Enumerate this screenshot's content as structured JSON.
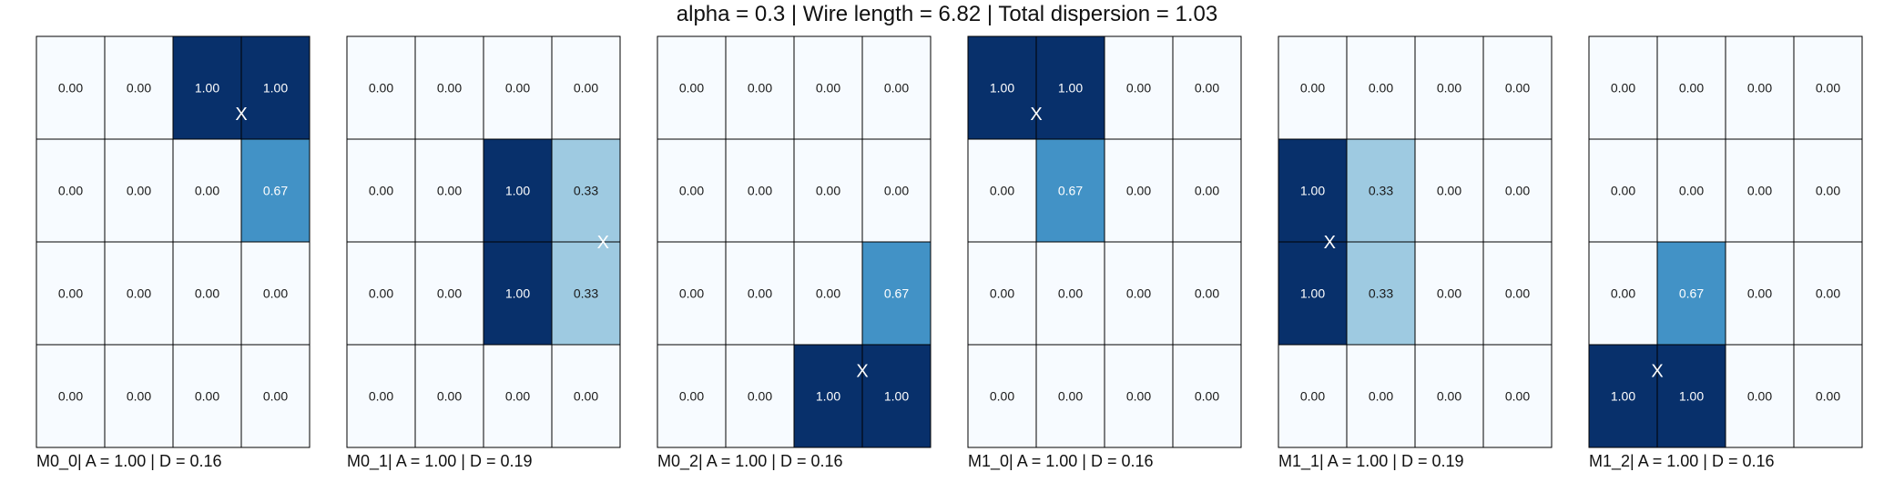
{
  "title": "alpha = 0.3 | Wire length = 6.82 | Total dispersion = 1.03",
  "colors": {
    "scale": [
      "#f7fbff",
      "#deebf7",
      "#c6dbef",
      "#9ecae1",
      "#6baed6",
      "#4292c6",
      "#2171b5",
      "#08519c",
      "#08306b"
    ],
    "grid": "#000000",
    "dark_text": "#1a1a1a",
    "light_text": "#ffffff"
  },
  "chart_data": [
    {
      "type": "heatmap",
      "caption": "M0_0| A = 1.00 | D = 0.16",
      "values": [
        [
          0.0,
          0.0,
          1.0,
          1.0
        ],
        [
          0.0,
          0.0,
          0.0,
          0.67
        ],
        [
          0.0,
          0.0,
          0.0,
          0.0
        ],
        [
          0.0,
          0.0,
          0.0,
          0.0
        ]
      ],
      "labels": [
        [
          "0.00",
          "0.00",
          "1.00",
          "1.00"
        ],
        [
          "0.00",
          "0.00",
          "0.00",
          "0.67"
        ],
        [
          "0.00",
          "0.00",
          "0.00",
          "0.00"
        ],
        [
          "0.00",
          "0.00",
          "0.00",
          "0.00"
        ]
      ],
      "marker": {
        "label": "X",
        "col": 3.0,
        "row": 0.75
      }
    },
    {
      "type": "heatmap",
      "caption": "M0_1| A = 1.00 | D = 0.19",
      "values": [
        [
          0.0,
          0.0,
          0.0,
          0.0
        ],
        [
          0.0,
          0.0,
          1.0,
          0.33
        ],
        [
          0.0,
          0.0,
          1.0,
          0.33
        ],
        [
          0.0,
          0.0,
          0.0,
          0.0
        ]
      ],
      "labels": [
        [
          "0.00",
          "0.00",
          "0.00",
          "0.00"
        ],
        [
          "0.00",
          "0.00",
          "1.00",
          "0.33"
        ],
        [
          "0.00",
          "0.00",
          "1.00",
          "0.33"
        ],
        [
          "0.00",
          "0.00",
          "0.00",
          "0.00"
        ]
      ],
      "marker": {
        "label": "X",
        "col": 3.75,
        "row": 2.0
      }
    },
    {
      "type": "heatmap",
      "caption": "M0_2| A = 1.00 | D = 0.16",
      "values": [
        [
          0.0,
          0.0,
          0.0,
          0.0
        ],
        [
          0.0,
          0.0,
          0.0,
          0.0
        ],
        [
          0.0,
          0.0,
          0.0,
          0.67
        ],
        [
          0.0,
          0.0,
          1.0,
          1.0
        ]
      ],
      "labels": [
        [
          "0.00",
          "0.00",
          "0.00",
          "0.00"
        ],
        [
          "0.00",
          "0.00",
          "0.00",
          "0.00"
        ],
        [
          "0.00",
          "0.00",
          "0.00",
          "0.67"
        ],
        [
          "0.00",
          "0.00",
          "1.00",
          "1.00"
        ]
      ],
      "marker": {
        "label": "X",
        "col": 3.0,
        "row": 3.25
      }
    },
    {
      "type": "heatmap",
      "caption": "M1_0| A = 1.00 | D = 0.16",
      "values": [
        [
          1.0,
          1.0,
          0.0,
          0.0
        ],
        [
          0.0,
          0.67,
          0.0,
          0.0
        ],
        [
          0.0,
          0.0,
          0.0,
          0.0
        ],
        [
          0.0,
          0.0,
          0.0,
          0.0
        ]
      ],
      "labels": [
        [
          "1.00",
          "1.00",
          "0.00",
          "0.00"
        ],
        [
          "0.00",
          "0.67",
          "0.00",
          "0.00"
        ],
        [
          "0.00",
          "0.00",
          "0.00",
          "0.00"
        ],
        [
          "0.00",
          "0.00",
          "0.00",
          "0.00"
        ]
      ],
      "marker": {
        "label": "X",
        "col": 1.0,
        "row": 0.75
      }
    },
    {
      "type": "heatmap",
      "caption": "M1_1| A = 1.00 | D = 0.19",
      "values": [
        [
          0.0,
          0.0,
          0.0,
          0.0
        ],
        [
          1.0,
          0.33,
          0.0,
          0.0
        ],
        [
          1.0,
          0.33,
          0.0,
          0.0
        ],
        [
          0.0,
          0.0,
          0.0,
          0.0
        ]
      ],
      "labels": [
        [
          "0.00",
          "0.00",
          "0.00",
          "0.00"
        ],
        [
          "1.00",
          "0.33",
          "0.00",
          "0.00"
        ],
        [
          "1.00",
          "0.33",
          "0.00",
          "0.00"
        ],
        [
          "0.00",
          "0.00",
          "0.00",
          "0.00"
        ]
      ],
      "marker": {
        "label": "X",
        "col": 0.75,
        "row": 2.0
      }
    },
    {
      "type": "heatmap",
      "caption": "M1_2| A = 1.00 | D = 0.16",
      "values": [
        [
          0.0,
          0.0,
          0.0,
          0.0
        ],
        [
          0.0,
          0.0,
          0.0,
          0.0
        ],
        [
          0.0,
          0.67,
          0.0,
          0.0
        ],
        [
          1.0,
          1.0,
          0.0,
          0.0
        ]
      ],
      "labels": [
        [
          "0.00",
          "0.00",
          "0.00",
          "0.00"
        ],
        [
          "0.00",
          "0.00",
          "0.00",
          "0.00"
        ],
        [
          "0.00",
          "0.67",
          "0.00",
          "0.00"
        ],
        [
          "1.00",
          "1.00",
          "0.00",
          "0.00"
        ]
      ],
      "marker": {
        "label": "X",
        "col": 1.0,
        "row": 3.25
      }
    }
  ]
}
